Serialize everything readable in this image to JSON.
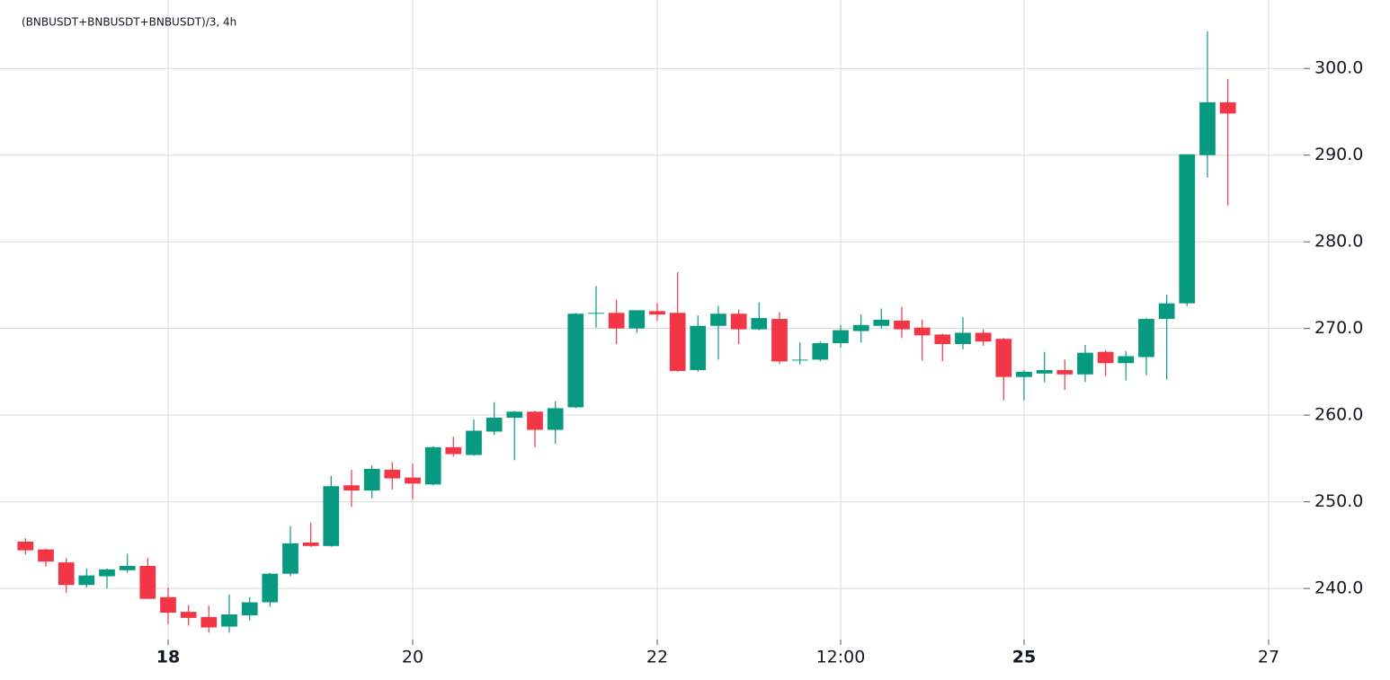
{
  "chart_data": {
    "type": "candlestick",
    "title": "(BNBUSDT+BNBUSDT+BNBUSDT)/3, 4h",
    "up_color": "#089981",
    "down_color": "#f23645",
    "grid": true,
    "x": [
      16.833,
      17,
      17.167,
      17.333,
      17.5,
      17.667,
      17.833,
      18,
      18.167,
      18.333,
      18.5,
      18.667,
      18.833,
      19,
      19.167,
      19.333,
      19.5,
      19.667,
      19.833,
      20,
      20.167,
      20.333,
      20.5,
      20.667,
      20.833,
      21,
      21.167,
      21.333,
      21.5,
      21.667,
      21.833,
      22,
      22.167,
      22.333,
      22.5,
      22.667,
      22.833,
      23,
      23.167,
      23.333,
      23.5,
      23.667,
      23.833,
      24,
      24.167,
      24.333,
      24.5,
      24.667,
      24.833,
      25,
      25.167,
      25.333,
      25.5,
      25.667,
      25.833,
      26,
      26.167,
      26.333,
      26.5,
      26.667
    ],
    "open": [
      245.4,
      244.5,
      243.0,
      240.4,
      241.4,
      242.1,
      242.6,
      239.0,
      237.3,
      236.7,
      235.6,
      236.9,
      238.4,
      241.7,
      245.3,
      244.9,
      251.9,
      251.3,
      253.7,
      252.8,
      252.0,
      256.3,
      255.4,
      258.1,
      259.7,
      260.4,
      258.3,
      260.9,
      271.7,
      271.8,
      270.0,
      272.0,
      271.8,
      265.2,
      270.3,
      271.7,
      269.9,
      271.1,
      266.3,
      266.4,
      268.3,
      269.7,
      270.3,
      270.9,
      270.1,
      269.3,
      268.2,
      269.5,
      268.8,
      264.4,
      264.8,
      265.2,
      264.7,
      267.3,
      266.0,
      266.7,
      271.1,
      272.9,
      290.0,
      296.1
    ],
    "high": [
      245.8,
      244.6,
      243.5,
      242.3,
      242.3,
      244.0,
      243.5,
      240.1,
      238.1,
      238.0,
      239.3,
      239.0,
      241.8,
      247.2,
      247.6,
      253.0,
      253.7,
      254.2,
      254.6,
      254.4,
      256.4,
      257.5,
      259.5,
      261.5,
      260.5,
      260.5,
      261.6,
      271.8,
      274.9,
      273.3,
      272.1,
      272.9,
      276.5,
      271.5,
      272.6,
      272.2,
      273.0,
      271.9,
      268.4,
      268.5,
      270.4,
      271.6,
      272.3,
      272.5,
      271.0,
      269.4,
      271.3,
      269.9,
      268.9,
      265.2,
      267.3,
      266.4,
      268.1,
      267.5,
      267.4,
      271.2,
      273.9,
      290.1,
      304.3,
      298.8
    ],
    "low": [
      243.9,
      242.5,
      239.5,
      240.1,
      240.0,
      241.8,
      238.8,
      235.9,
      235.7,
      234.9,
      234.9,
      236.3,
      237.9,
      241.4,
      244.8,
      244.8,
      249.4,
      250.4,
      251.4,
      250.3,
      251.9,
      255.2,
      255.3,
      257.7,
      254.8,
      256.3,
      256.7,
      260.8,
      270.1,
      268.2,
      269.5,
      270.9,
      265.0,
      265.0,
      266.4,
      268.2,
      269.8,
      265.9,
      265.8,
      266.2,
      267.8,
      268.4,
      270.0,
      268.9,
      266.3,
      266.2,
      267.6,
      268.0,
      261.7,
      261.7,
      263.8,
      262.9,
      263.8,
      264.5,
      264.0,
      264.6,
      264.1,
      272.6,
      287.4,
      284.2
    ],
    "close": [
      244.4,
      243.1,
      240.4,
      241.5,
      242.2,
      242.6,
      238.8,
      237.2,
      236.6,
      235.5,
      237.0,
      238.4,
      241.7,
      245.2,
      244.9,
      251.8,
      251.3,
      253.8,
      252.7,
      252.1,
      256.3,
      255.5,
      258.2,
      259.7,
      260.4,
      258.3,
      260.8,
      271.7,
      271.8,
      270.0,
      272.1,
      271.6,
      265.1,
      270.3,
      271.7,
      269.9,
      271.2,
      266.2,
      266.4,
      268.3,
      269.8,
      270.4,
      271.0,
      269.9,
      269.2,
      268.2,
      269.5,
      268.5,
      264.4,
      265.0,
      265.2,
      264.7,
      267.2,
      266.0,
      266.8,
      271.1,
      272.9,
      290.1,
      296.1,
      294.8
    ],
    "xlim": [
      16.625,
      27.287
    ],
    "xticks": [
      {
        "value": 18,
        "label": "18",
        "bold": true
      },
      {
        "value": 20,
        "label": "20"
      },
      {
        "value": 22,
        "label": "22"
      },
      {
        "value": 23.5,
        "label": "12:00"
      },
      {
        "value": 25,
        "label": "25",
        "bold": true
      },
      {
        "value": 27,
        "label": "27"
      }
    ],
    "ylim": [
      234.1,
      307.9
    ],
    "yticks": [
      {
        "value": 240,
        "label": "240.0"
      },
      {
        "value": 250,
        "label": "250.0"
      },
      {
        "value": 260,
        "label": "260.0"
      },
      {
        "value": 270,
        "label": "270.0"
      },
      {
        "value": 280,
        "label": "280.0"
      },
      {
        "value": 290,
        "label": "290.0"
      },
      {
        "value": 300,
        "label": "300.0"
      }
    ]
  }
}
